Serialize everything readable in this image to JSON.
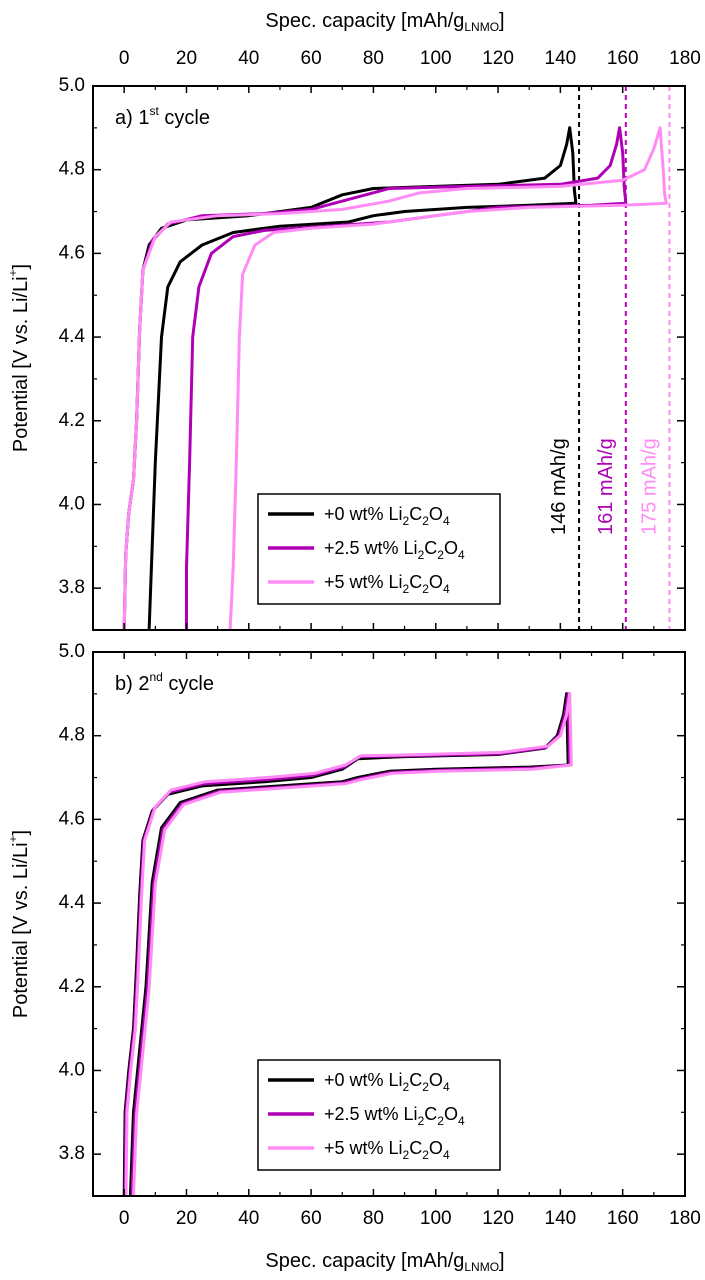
{
  "chart_data": [
    {
      "type": "line",
      "panel_label": "a) 1",
      "panel_label_sup": "st",
      "panel_label_rest": " cycle",
      "xlabel": "Spec. capacity [mAh/g",
      "xlabel_sub": "LNMO",
      "xlabel_end": "]",
      "xlabel_position": "top",
      "ylabel": "Potential [V vs. Li/Li",
      "ylabel_sup": "+",
      "ylabel_end": "]",
      "xlim": [
        -10,
        180
      ],
      "ylim": [
        3.7,
        5.0
      ],
      "xticks": [
        "0",
        "20",
        "40",
        "60",
        "80",
        "100",
        "120",
        "140",
        "160",
        "180"
      ],
      "yticks": [
        "3.8",
        "4.0",
        "4.2",
        "4.4",
        "4.6",
        "4.8",
        "5.0"
      ],
      "grid": false,
      "legend_position": "bottom-center",
      "series": [
        {
          "name": "+0 wt% Li2C2O4",
          "name_parts": [
            "+0 wt% Li",
            "2",
            "C",
            "2",
            "O",
            "4"
          ],
          "color": "#000000",
          "charge": [
            [
              0,
              3.7
            ],
            [
              0.5,
              3.88
            ],
            [
              1.5,
              3.98
            ],
            [
              3,
              4.06
            ],
            [
              4,
              4.2
            ],
            [
              5,
              4.42
            ],
            [
              6,
              4.56
            ],
            [
              8,
              4.62
            ],
            [
              12,
              4.66
            ],
            [
              20,
              4.68
            ],
            [
              40,
              4.69
            ],
            [
              60,
              4.71
            ],
            [
              70,
              4.74
            ],
            [
              80,
              4.755
            ],
            [
              100,
              4.76
            ],
            [
              120,
              4.765
            ],
            [
              135,
              4.78
            ],
            [
              140,
              4.81
            ],
            [
              142,
              4.86
            ],
            [
              143,
              4.9
            ]
          ],
          "discharge": [
            [
              143,
              4.9
            ],
            [
              144,
              4.84
            ],
            [
              144.5,
              4.75
            ],
            [
              145,
              4.72
            ],
            [
              130,
              4.715
            ],
            [
              110,
              4.71
            ],
            [
              90,
              4.7
            ],
            [
              80,
              4.69
            ],
            [
              72,
              4.675
            ],
            [
              50,
              4.665
            ],
            [
              35,
              4.65
            ],
            [
              25,
              4.62
            ],
            [
              18,
              4.58
            ],
            [
              14,
              4.52
            ],
            [
              12,
              4.4
            ],
            [
              10,
              4.1
            ],
            [
              9,
              3.9
            ],
            [
              8,
              3.7
            ]
          ]
        },
        {
          "name": "+2.5 wt% Li2C2O4",
          "name_parts": [
            "+2.5 wt% Li",
            "2",
            "C",
            "2",
            "O",
            "4"
          ],
          "color": "#b000b5",
          "charge": [
            [
              0,
              3.7
            ],
            [
              0.5,
              3.88
            ],
            [
              1.5,
              3.98
            ],
            [
              3,
              4.06
            ],
            [
              4,
              4.2
            ],
            [
              5,
              4.42
            ],
            [
              6,
              4.56
            ],
            [
              9,
              4.63
            ],
            [
              14,
              4.67
            ],
            [
              25,
              4.69
            ],
            [
              45,
              4.695
            ],
            [
              60,
              4.705
            ],
            [
              75,
              4.735
            ],
            [
              85,
              4.755
            ],
            [
              110,
              4.76
            ],
            [
              140,
              4.765
            ],
            [
              152,
              4.78
            ],
            [
              156,
              4.81
            ],
            [
              158,
              4.86
            ],
            [
              159,
              4.9
            ]
          ],
          "discharge": [
            [
              159,
              4.9
            ],
            [
              160,
              4.84
            ],
            [
              160.5,
              4.76
            ],
            [
              161,
              4.72
            ],
            [
              150,
              4.715
            ],
            [
              120,
              4.71
            ],
            [
              100,
              4.69
            ],
            [
              85,
              4.675
            ],
            [
              65,
              4.665
            ],
            [
              45,
              4.655
            ],
            [
              35,
              4.64
            ],
            [
              28,
              4.6
            ],
            [
              24,
              4.52
            ],
            [
              22,
              4.4
            ],
            [
              21,
              4.1
            ],
            [
              20,
              3.85
            ],
            [
              20,
              3.7
            ]
          ]
        },
        {
          "name": "+5 wt% Li2C2O4",
          "name_parts": [
            "+5 wt% Li",
            "2",
            "C",
            "2",
            "O",
            "4"
          ],
          "color": "#ff8cf5",
          "charge": [
            [
              0,
              3.7
            ],
            [
              0.5,
              3.88
            ],
            [
              1.5,
              3.98
            ],
            [
              3,
              4.06
            ],
            [
              4,
              4.2
            ],
            [
              5,
              4.42
            ],
            [
              6,
              4.56
            ],
            [
              10,
              4.64
            ],
            [
              15,
              4.675
            ],
            [
              30,
              4.69
            ],
            [
              50,
              4.695
            ],
            [
              70,
              4.705
            ],
            [
              85,
              4.725
            ],
            [
              95,
              4.745
            ],
            [
              110,
              4.755
            ],
            [
              140,
              4.76
            ],
            [
              160,
              4.775
            ],
            [
              167,
              4.8
            ],
            [
              170,
              4.85
            ],
            [
              172,
              4.9
            ]
          ],
          "discharge": [
            [
              172,
              4.9
            ],
            [
              173,
              4.8
            ],
            [
              173.5,
              4.74
            ],
            [
              174,
              4.72
            ],
            [
              160,
              4.715
            ],
            [
              130,
              4.71
            ],
            [
              110,
              4.7
            ],
            [
              95,
              4.685
            ],
            [
              80,
              4.67
            ],
            [
              60,
              4.66
            ],
            [
              48,
              4.65
            ],
            [
              42,
              4.62
            ],
            [
              38,
              4.55
            ],
            [
              37,
              4.4
            ],
            [
              36,
              4.1
            ],
            [
              35,
              3.85
            ],
            [
              34,
              3.7
            ]
          ]
        }
      ],
      "reference_lines": [
        {
          "x": 146,
          "label": "146 mAh/g",
          "color": "#000000"
        },
        {
          "x": 161,
          "label": "161 mAh/g",
          "color": "#b000b5"
        },
        {
          "x": 175,
          "label": "175 mAh/g",
          "color": "#ff8cf5"
        }
      ]
    },
    {
      "type": "line",
      "panel_label": "b) 2",
      "panel_label_sup": "nd",
      "panel_label_rest": " cycle",
      "xlabel": "Spec. capacity [mAh/g",
      "xlabel_sub": "LNMO",
      "xlabel_end": "]",
      "xlabel_position": "bottom",
      "ylabel": "Potential [V vs. Li/Li",
      "ylabel_sup": "+",
      "ylabel_end": "]",
      "xlim": [
        -10,
        180
      ],
      "ylim": [
        3.7,
        5.0
      ],
      "xticks": [
        "0",
        "20",
        "40",
        "60",
        "80",
        "100",
        "120",
        "140",
        "160",
        "180"
      ],
      "yticks": [
        "3.8",
        "4.0",
        "4.2",
        "4.4",
        "4.6",
        "4.8",
        "5.0"
      ],
      "grid": false,
      "legend_position": "bottom-center",
      "series": [
        {
          "name": "+0 wt% Li2C2O4",
          "name_parts": [
            "+0 wt% Li",
            "2",
            "C",
            "2",
            "O",
            "4"
          ],
          "color": "#000000",
          "charge": [
            [
              0,
              3.7
            ],
            [
              0.3,
              3.9
            ],
            [
              1.5,
              4.0
            ],
            [
              3,
              4.1
            ],
            [
              4,
              4.25
            ],
            [
              5,
              4.42
            ],
            [
              6,
              4.55
            ],
            [
              9,
              4.62
            ],
            [
              14,
              4.66
            ],
            [
              25,
              4.68
            ],
            [
              45,
              4.69
            ],
            [
              60,
              4.7
            ],
            [
              70,
              4.72
            ],
            [
              75,
              4.745
            ],
            [
              90,
              4.75
            ],
            [
              120,
              4.755
            ],
            [
              135,
              4.77
            ],
            [
              139,
              4.8
            ],
            [
              141,
              4.85
            ],
            [
              142,
              4.9
            ]
          ],
          "discharge": [
            [
              142,
              4.9
            ],
            [
              142.3,
              4.8
            ],
            [
              142.5,
              4.73
            ],
            [
              130,
              4.725
            ],
            [
              100,
              4.72
            ],
            [
              85,
              4.715
            ],
            [
              75,
              4.7
            ],
            [
              70,
              4.69
            ],
            [
              50,
              4.68
            ],
            [
              30,
              4.67
            ],
            [
              18,
              4.64
            ],
            [
              12,
              4.58
            ],
            [
              9,
              4.45
            ],
            [
              7,
              4.2
            ],
            [
              5,
              4.05
            ],
            [
              3,
              3.9
            ],
            [
              2,
              3.7
            ]
          ]
        },
        {
          "name": "+2.5 wt% Li2C2O4",
          "name_parts": [
            "+2.5 wt% Li",
            "2",
            "C",
            "2",
            "O",
            "4"
          ],
          "color": "#b000b5",
          "charge": [
            [
              0.3,
              3.7
            ],
            [
              0.6,
              3.9
            ],
            [
              1.8,
              4.0
            ],
            [
              3.3,
              4.1
            ],
            [
              4.3,
              4.25
            ],
            [
              5.3,
              4.42
            ],
            [
              6.3,
              4.55
            ],
            [
              9.5,
              4.625
            ],
            [
              14.5,
              4.665
            ],
            [
              25.5,
              4.685
            ],
            [
              45.5,
              4.695
            ],
            [
              60.5,
              4.705
            ],
            [
              70.5,
              4.725
            ],
            [
              75.5,
              4.75
            ],
            [
              90.5,
              4.752
            ],
            [
              120.5,
              4.757
            ],
            [
              135.5,
              4.772
            ],
            [
              139.5,
              4.8
            ],
            [
              141.5,
              4.85
            ],
            [
              142.5,
              4.9
            ]
          ],
          "discharge": [
            [
              142.5,
              4.9
            ],
            [
              142.8,
              4.8
            ],
            [
              143,
              4.73
            ],
            [
              130.5,
              4.722
            ],
            [
              100.5,
              4.717
            ],
            [
              85.5,
              4.712
            ],
            [
              75.5,
              4.697
            ],
            [
              70.5,
              4.687
            ],
            [
              50.5,
              4.677
            ],
            [
              30.5,
              4.667
            ],
            [
              18.5,
              4.637
            ],
            [
              12.5,
              4.577
            ],
            [
              9.5,
              4.447
            ],
            [
              7.5,
              4.197
            ],
            [
              5.5,
              4.047
            ],
            [
              3.5,
              3.897
            ],
            [
              2.5,
              3.7
            ]
          ]
        },
        {
          "name": "+5 wt% Li2C2O4",
          "name_parts": [
            "+5 wt% Li",
            "2",
            "C",
            "2",
            "O",
            "4"
          ],
          "color": "#ff8cf5",
          "charge": [
            [
              0.6,
              3.7
            ],
            [
              0.9,
              3.9
            ],
            [
              2.1,
              4.0
            ],
            [
              3.6,
              4.1
            ],
            [
              4.6,
              4.25
            ],
            [
              5.6,
              4.42
            ],
            [
              6.6,
              4.55
            ],
            [
              10,
              4.63
            ],
            [
              15,
              4.67
            ],
            [
              26,
              4.69
            ],
            [
              46,
              4.7
            ],
            [
              61,
              4.71
            ],
            [
              71,
              4.73
            ],
            [
              76,
              4.752
            ],
            [
              91,
              4.754
            ],
            [
              121,
              4.76
            ],
            [
              136,
              4.775
            ],
            [
              140,
              4.8
            ],
            [
              142,
              4.85
            ],
            [
              143,
              4.9
            ]
          ],
          "discharge": [
            [
              143,
              4.9
            ],
            [
              143.3,
              4.8
            ],
            [
              143.5,
              4.73
            ],
            [
              131,
              4.72
            ],
            [
              101,
              4.715
            ],
            [
              86,
              4.71
            ],
            [
              76,
              4.695
            ],
            [
              71,
              4.685
            ],
            [
              51,
              4.675
            ],
            [
              31,
              4.665
            ],
            [
              19,
              4.635
            ],
            [
              13,
              4.575
            ],
            [
              10,
              4.445
            ],
            [
              8,
              4.195
            ],
            [
              6,
              4.045
            ],
            [
              4,
              3.895
            ],
            [
              3,
              3.7
            ]
          ]
        }
      ],
      "reference_lines": []
    }
  ]
}
